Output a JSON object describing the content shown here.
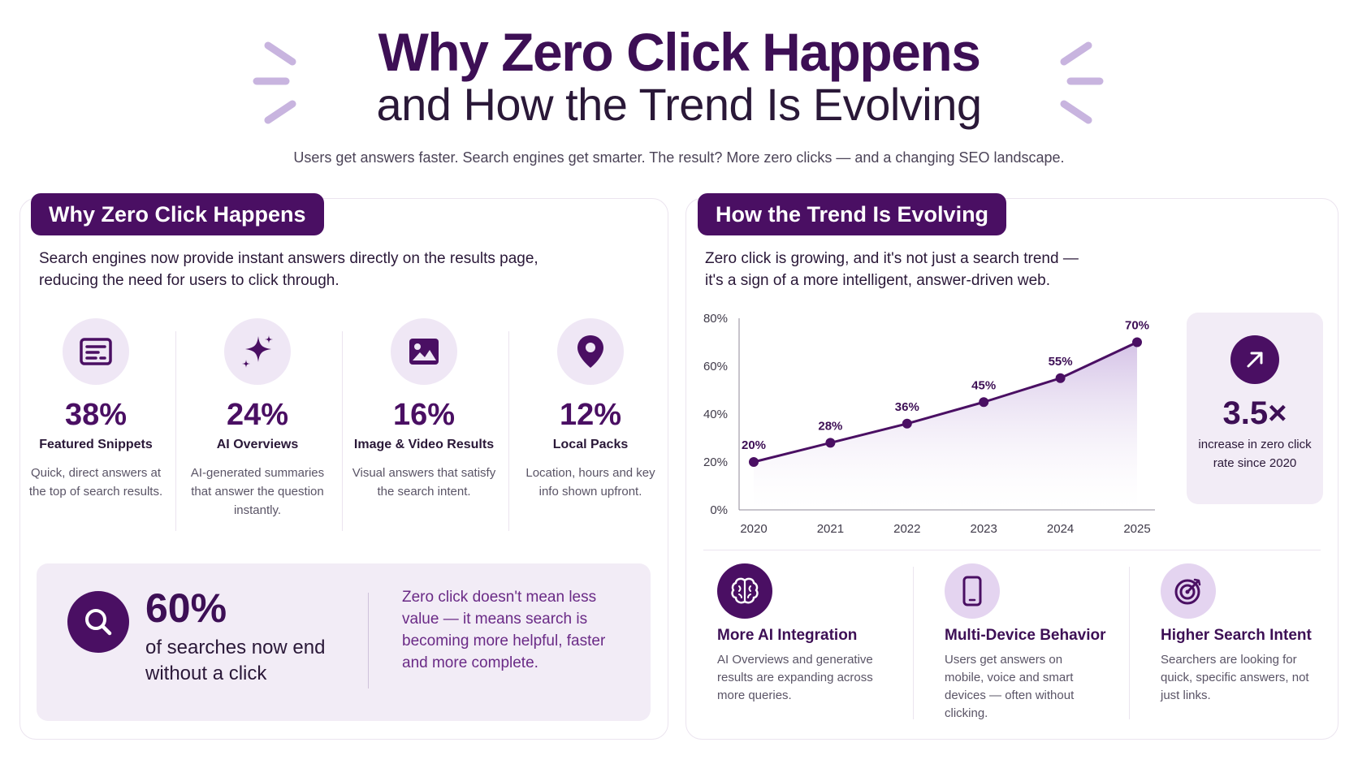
{
  "header": {
    "title_line1": "Why Zero Click Happens",
    "title_line2": "and How the Trend Is Evolving",
    "subtitle": "Users get answers faster. Search engines get smarter. The result? More zero clicks — and a changing SEO landscape."
  },
  "left_panel": {
    "tab_title": "Why Zero Click Happens",
    "description_line1": "Search engines now provide instant answers directly on the results page,",
    "description_line2": "reducing the need for users to click through.",
    "stats": [
      {
        "value": "38%",
        "label": "Featured Snippets",
        "text": "Quick, direct answers at the top of search results.",
        "icon": "snippet-card-icon"
      },
      {
        "value": "24%",
        "label": "AI Overviews",
        "text": "AI-generated summaries that answer the question instantly.",
        "icon": "sparkle-icon"
      },
      {
        "value": "16%",
        "label": "Image & Video Results",
        "text": "Visual answers that satisfy the search intent.",
        "icon": "image-icon"
      },
      {
        "value": "12%",
        "label": "Local Packs",
        "text": "Location, hours and key info shown upfront.",
        "icon": "map-pin-icon"
      }
    ],
    "callout": {
      "value": "60%",
      "text": "of searches now end without a click",
      "quote": "Zero click doesn't mean less value — it means search is becoming more helpful, faster and more complete.",
      "icon": "search-icon"
    }
  },
  "right_panel": {
    "tab_title": "How the Trend Is Evolving",
    "description_line1": "Zero click is growing, and it's not just a search trend —",
    "description_line2": "it's a sign of a more intelligent, answer-driven web.",
    "growth_card": {
      "value": "3.5×",
      "text": "increase in zero click rate since 2020",
      "icon": "arrow-up-right-icon"
    },
    "trends": [
      {
        "label": "More AI Integration",
        "text": "AI Overviews and generative results are expanding across more queries.",
        "icon": "brain-icon"
      },
      {
        "label": "Multi-Device Behavior",
        "text": "Users get answers on mobile, voice and smart devices — often without clicking.",
        "icon": "smartphone-icon"
      },
      {
        "label": "Higher Search Intent",
        "text": "Searchers are looking for quick, specific answers, not just links.",
        "icon": "target-icon"
      }
    ]
  },
  "colors": {
    "primary": "#4a0f63",
    "title": "#3d0f55",
    "light_fill": "#efe7f5",
    "card_fill": "#f2ecf6",
    "accent_decoration": "#c8b4df"
  },
  "chart_data": {
    "type": "area",
    "title": "",
    "xlabel": "",
    "ylabel": "",
    "x": [
      "2020",
      "2021",
      "2022",
      "2023",
      "2024",
      "2025"
    ],
    "values": [
      20,
      28,
      36,
      45,
      55,
      70
    ],
    "data_labels": [
      "20%",
      "28%",
      "36%",
      "45%",
      "55%",
      "70%"
    ],
    "y_ticks": [
      "0%",
      "20%",
      "40%",
      "60%",
      "80%"
    ],
    "ylim": [
      0,
      80
    ],
    "grid": false,
    "legend": "none"
  }
}
